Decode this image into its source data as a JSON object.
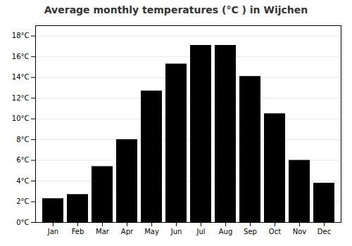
{
  "chart_data": {
    "type": "bar",
    "title": "Average monthly temperatures (°C ) in Wijchen",
    "categories": [
      "Jan",
      "Feb",
      "Mar",
      "Apr",
      "May",
      "Jun",
      "Jul",
      "Aug",
      "Sep",
      "Oct",
      "Nov",
      "Dec"
    ],
    "values": [
      2.3,
      2.7,
      5.4,
      8.0,
      12.7,
      15.3,
      17.1,
      17.1,
      14.1,
      10.5,
      6.0,
      3.8
    ],
    "ylim": [
      0,
      19
    ],
    "yticks": [
      {
        "value": 0,
        "label": "0°C"
      },
      {
        "value": 2,
        "label": "2°C"
      },
      {
        "value": 4,
        "label": "4°C"
      },
      {
        "value": 6,
        "label": "6°C"
      },
      {
        "value": 8,
        "label": "8°C"
      },
      {
        "value": 10,
        "label": "10°C"
      },
      {
        "value": 12,
        "label": "12°C"
      },
      {
        "value": 14,
        "label": "14°C"
      },
      {
        "value": 16,
        "label": "16°C"
      },
      {
        "value": 18,
        "label": "18°C"
      }
    ],
    "grid": true
  }
}
